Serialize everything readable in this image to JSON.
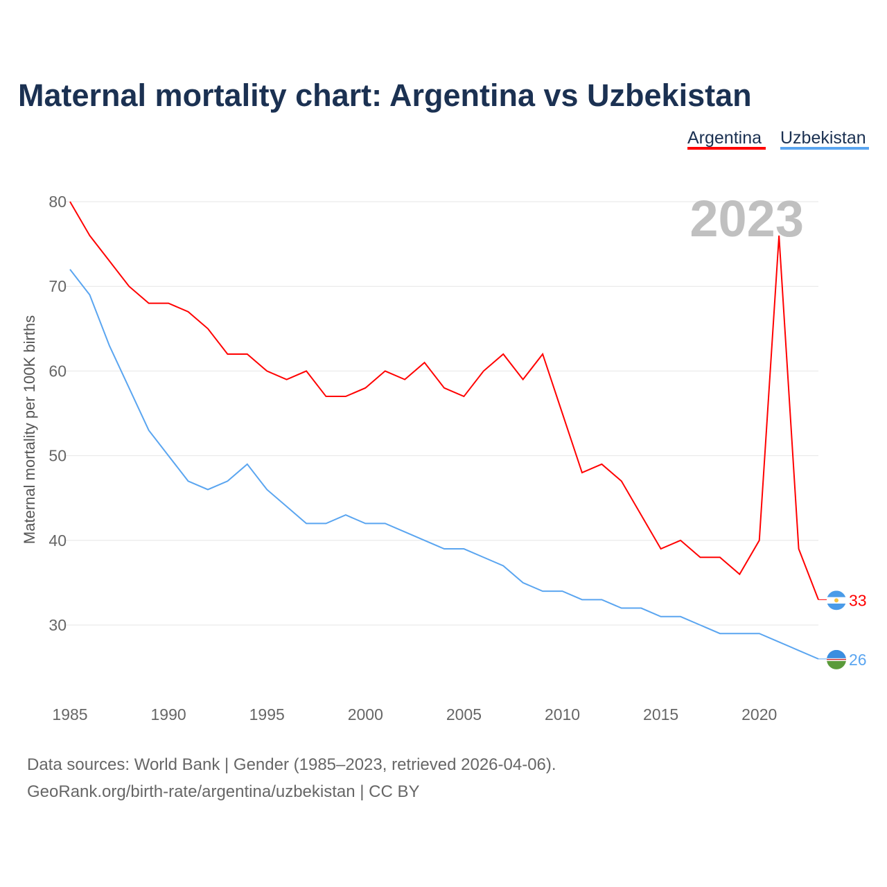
{
  "chart_data": {
    "type": "line",
    "title": "Maternal mortality chart: Argentina vs Uzbekistan",
    "ylabel": "Maternal mortality per 100K births",
    "xlabel": "",
    "year_watermark": "2023",
    "ylim": [
      22,
      82
    ],
    "xlim": [
      1985,
      2023
    ],
    "yticks": [
      "30",
      "40",
      "50",
      "60",
      "70",
      "80"
    ],
    "xticks": [
      "1985",
      "1990",
      "1995",
      "2000",
      "2005",
      "2010",
      "2015",
      "2020"
    ],
    "grid": true,
    "legend_placement": "top-right",
    "x": [
      1985,
      1986,
      1987,
      1988,
      1989,
      1990,
      1991,
      1992,
      1993,
      1994,
      1995,
      1996,
      1997,
      1998,
      1999,
      2000,
      2001,
      2002,
      2003,
      2004,
      2005,
      2006,
      2007,
      2008,
      2009,
      2010,
      2011,
      2012,
      2013,
      2014,
      2015,
      2016,
      2017,
      2018,
      2019,
      2020,
      2021,
      2022,
      2023
    ],
    "series": [
      {
        "name": "Argentina",
        "color": "#ff0000",
        "end_label": "33",
        "values": [
          80,
          76,
          73,
          70,
          68,
          68,
          67,
          65,
          62,
          62,
          60,
          59,
          60,
          57,
          57,
          58,
          60,
          59,
          61,
          58,
          57,
          60,
          62,
          59,
          62,
          55,
          48,
          49,
          47,
          43,
          39,
          40,
          38,
          38,
          36,
          40,
          76,
          39,
          33
        ]
      },
      {
        "name": "Uzbekistan",
        "color": "#5aa5f0",
        "end_label": "26",
        "values": [
          72,
          69,
          63,
          58,
          53,
          50,
          47,
          46,
          47,
          49,
          46,
          44,
          42,
          42,
          43,
          42,
          42,
          41,
          40,
          39,
          39,
          38,
          37,
          35,
          34,
          34,
          33,
          33,
          32,
          32,
          31,
          31,
          30,
          29,
          29,
          29,
          28,
          27,
          26
        ]
      }
    ]
  },
  "footer": {
    "line1": "Data sources: World Bank | Gender (1985–2023, retrieved 2026-04-06).",
    "line2": "GeoRank.org/birth-rate/argentina/uzbekistan | CC BY"
  }
}
